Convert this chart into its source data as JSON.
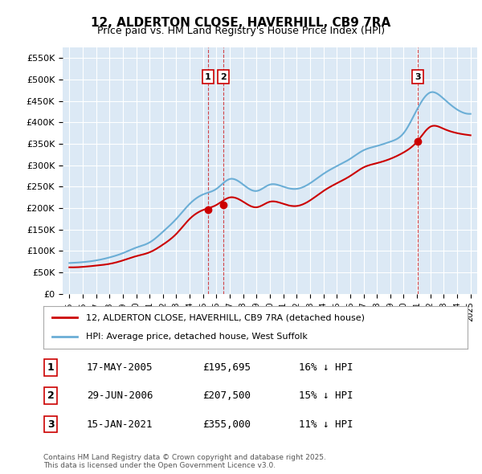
{
  "title_line1": "12, ALDERTON CLOSE, HAVERHILL, CB9 7RA",
  "title_line2": "Price paid vs. HM Land Registry's House Price Index (HPI)",
  "ylabel": "",
  "background_color": "#ffffff",
  "plot_bg_color": "#dce9f5",
  "grid_color": "#ffffff",
  "hpi_color": "#6baed6",
  "price_color": "#cc0000",
  "ylim": [
    0,
    575000
  ],
  "yticks": [
    0,
    50000,
    100000,
    150000,
    200000,
    250000,
    300000,
    350000,
    400000,
    450000,
    500000,
    550000
  ],
  "ytick_labels": [
    "£0",
    "£50K",
    "£100K",
    "£150K",
    "£200K",
    "£250K",
    "£300K",
    "£350K",
    "£400K",
    "£450K",
    "£500K",
    "£550K"
  ],
  "sale_dates": [
    "2005-05-17",
    "2006-06-29",
    "2021-01-15"
  ],
  "sale_prices": [
    195695,
    207500,
    355000
  ],
  "sale_labels": [
    "1",
    "2",
    "3"
  ],
  "annotation_table": [
    [
      "1",
      "17-MAY-2005",
      "£195,695",
      "16% ↓ HPI"
    ],
    [
      "2",
      "29-JUN-2006",
      "£207,500",
      "15% ↓ HPI"
    ],
    [
      "3",
      "15-JAN-2021",
      "£355,000",
      "11% ↓ HPI"
    ]
  ],
  "legend_line1": "12, ALDERTON CLOSE, HAVERHILL, CB9 7RA (detached house)",
  "legend_line2": "HPI: Average price, detached house, West Suffolk",
  "footnote": "Contains HM Land Registry data © Crown copyright and database right 2025.\nThis data is licensed under the Open Government Licence v3.0.",
  "hpi_data": {
    "years": [
      1995,
      1996,
      1997,
      1998,
      1999,
      2000,
      2001,
      2002,
      2003,
      2004,
      2005,
      2006,
      2007,
      2008,
      2009,
      2010,
      2011,
      2012,
      2013,
      2014,
      2015,
      2016,
      2017,
      2018,
      2019,
      2020,
      2021,
      2022,
      2023,
      2024,
      2025
    ],
    "values": [
      72000,
      74000,
      78000,
      85000,
      95000,
      108000,
      120000,
      145000,
      175000,
      210000,
      232000,
      245000,
      268000,
      255000,
      240000,
      255000,
      250000,
      245000,
      258000,
      280000,
      298000,
      315000,
      335000,
      345000,
      355000,
      375000,
      430000,
      470000,
      455000,
      430000,
      420000
    ]
  },
  "price_data": {
    "years": [
      1995,
      1996,
      1997,
      1998,
      1999,
      2000,
      2001,
      2002,
      2003,
      2004,
      2005,
      2006,
      2007,
      2008,
      2009,
      2010,
      2011,
      2012,
      2013,
      2014,
      2015,
      2016,
      2017,
      2018,
      2019,
      2020,
      2021,
      2022,
      2023,
      2024,
      2025
    ],
    "values": [
      62000,
      63000,
      66000,
      70000,
      78000,
      88000,
      97000,
      115000,
      140000,
      175000,
      195695,
      207500,
      225000,
      215000,
      202000,
      215000,
      210000,
      205000,
      218000,
      240000,
      258000,
      275000,
      295000,
      305000,
      315000,
      330000,
      355000,
      390000,
      385000,
      375000,
      370000
    ]
  }
}
